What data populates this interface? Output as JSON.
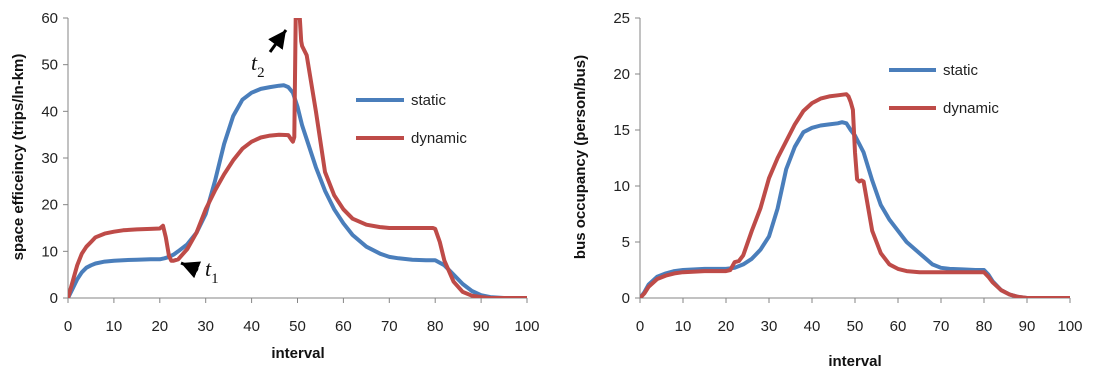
{
  "chart_data": [
    {
      "type": "line",
      "xlabel": "interval",
      "ylabel": "space efficeincy (trips/ln-km)",
      "xlim": [
        0,
        100
      ],
      "ylim": [
        0,
        60
      ],
      "xticks": [
        "0",
        "10",
        "20",
        "30",
        "40",
        "50",
        "60",
        "70",
        "80",
        "90",
        "100"
      ],
      "yticks": [
        "0",
        "10",
        "20",
        "30",
        "40",
        "50",
        "60"
      ],
      "legend_position": "right",
      "series": [
        {
          "name": "static",
          "color": "#4a7ebb",
          "x": [
            0,
            1,
            2,
            3,
            4,
            5,
            6,
            8,
            10,
            12,
            15,
            18,
            20,
            21,
            22,
            23,
            24,
            26,
            28,
            30,
            32,
            34,
            36,
            38,
            40,
            42,
            44,
            46,
            47,
            48,
            49,
            50,
            51,
            52,
            54,
            56,
            58,
            60,
            62,
            65,
            68,
            70,
            72,
            75,
            78,
            80,
            82,
            84,
            86,
            88,
            90,
            92,
            95,
            98,
            100
          ],
          "y": [
            0,
            2,
            4,
            5.5,
            6.5,
            7,
            7.4,
            7.8,
            8,
            8.1,
            8.2,
            8.3,
            8.3,
            8.5,
            8.8,
            9.3,
            10,
            11.5,
            14,
            18,
            25,
            33,
            39,
            42.5,
            44,
            44.8,
            45.2,
            45.5,
            45.6,
            45.2,
            44,
            41,
            37,
            34,
            28,
            23,
            19,
            16,
            13.5,
            11,
            9.5,
            8.8,
            8.5,
            8.2,
            8.1,
            8.1,
            7,
            5,
            3,
            1.5,
            0.6,
            0.2,
            0,
            0,
            0
          ]
        },
        {
          "name": "dynamic",
          "color": "#be4b48",
          "x": [
            0,
            1,
            2,
            3,
            4,
            5,
            6,
            8,
            10,
            12,
            15,
            18,
            20,
            20.7,
            21.3,
            22,
            22.5,
            23,
            24,
            26,
            28,
            30,
            32,
            34,
            36,
            38,
            40,
            42,
            44,
            46,
            48,
            48.6,
            49,
            49.3,
            49.6,
            50.5,
            50.8,
            51,
            52,
            54,
            56,
            58,
            60,
            62,
            65,
            68,
            70,
            72,
            75,
            78,
            79.5,
            80,
            81,
            82,
            84,
            86,
            88,
            90,
            92,
            95,
            98,
            100
          ],
          "y": [
            0,
            3.5,
            7,
            9.5,
            11,
            12,
            13,
            13.8,
            14.2,
            14.5,
            14.7,
            14.8,
            14.9,
            15.5,
            13,
            9,
            8,
            8,
            8.3,
            10.5,
            14,
            19,
            23,
            26.5,
            29.5,
            32,
            33.5,
            34.4,
            34.8,
            35,
            34.9,
            34,
            33.5,
            34.5,
            60,
            60,
            55,
            54,
            52,
            40,
            27,
            22,
            19,
            17,
            15.7,
            15.2,
            15,
            15,
            15,
            15,
            15,
            14.8,
            12,
            8,
            3.5,
            1.3,
            0.5,
            0.2,
            0,
            0,
            0,
            0
          ]
        }
      ],
      "annotations": [
        {
          "base": "t",
          "sub": "1"
        },
        {
          "base": "t",
          "sub": "2"
        }
      ]
    },
    {
      "type": "line",
      "xlabel": "interval",
      "ylabel": "bus occupancy (person/bus)",
      "xlim": [
        0,
        100
      ],
      "ylim": [
        0,
        25
      ],
      "xticks": [
        "0",
        "10",
        "20",
        "30",
        "40",
        "50",
        "60",
        "70",
        "80",
        "90",
        "100"
      ],
      "yticks": [
        "0",
        "5",
        "10",
        "15",
        "20",
        "25"
      ],
      "legend_position": "right",
      "series": [
        {
          "name": "static",
          "color": "#4a7ebb",
          "x": [
            0,
            1,
            2,
            4,
            6,
            8,
            10,
            15,
            20,
            22,
            24,
            26,
            28,
            30,
            32,
            34,
            36,
            38,
            40,
            42,
            44,
            46,
            47,
            48,
            49,
            50,
            52,
            54,
            56,
            58,
            60,
            62,
            65,
            68,
            70,
            72,
            75,
            78,
            80,
            81,
            82,
            84,
            86,
            88,
            90,
            95,
            100
          ],
          "y": [
            0,
            0.5,
            1.2,
            1.9,
            2.2,
            2.4,
            2.5,
            2.6,
            2.6,
            2.7,
            3,
            3.5,
            4.3,
            5.5,
            8,
            11.5,
            13.5,
            14.8,
            15.2,
            15.4,
            15.5,
            15.6,
            15.7,
            15.6,
            15,
            14.5,
            13,
            10.5,
            8.3,
            7,
            6,
            5,
            4,
            3,
            2.7,
            2.6,
            2.55,
            2.5,
            2.5,
            2.1,
            1.5,
            0.7,
            0.3,
            0.1,
            0,
            0,
            0
          ]
        },
        {
          "name": "dynamic",
          "color": "#be4b48",
          "x": [
            0,
            1,
            2,
            4,
            6,
            8,
            10,
            15,
            20,
            21,
            22,
            23,
            24,
            26,
            28,
            30,
            32,
            34,
            36,
            38,
            40,
            42,
            44,
            46,
            48,
            48.5,
            49,
            49.5,
            50,
            50.5,
            51,
            51.5,
            52,
            54,
            56,
            58,
            60,
            62,
            65,
            68,
            70,
            72,
            75,
            78,
            80,
            81,
            82,
            84,
            86,
            88,
            90,
            95,
            100
          ],
          "y": [
            0,
            0.4,
            1,
            1.7,
            2,
            2.2,
            2.3,
            2.4,
            2.4,
            2.5,
            3.2,
            3.3,
            3.8,
            6,
            8,
            10.7,
            12.5,
            14,
            15.5,
            16.7,
            17.4,
            17.8,
            18,
            18.1,
            18.2,
            18,
            17.5,
            16.8,
            13,
            10.6,
            10.4,
            10.5,
            10.4,
            6,
            4,
            3,
            2.6,
            2.4,
            2.3,
            2.3,
            2.3,
            2.3,
            2.3,
            2.3,
            2.3,
            1.9,
            1.4,
            0.7,
            0.3,
            0.1,
            0,
            0,
            0
          ]
        }
      ]
    }
  ]
}
